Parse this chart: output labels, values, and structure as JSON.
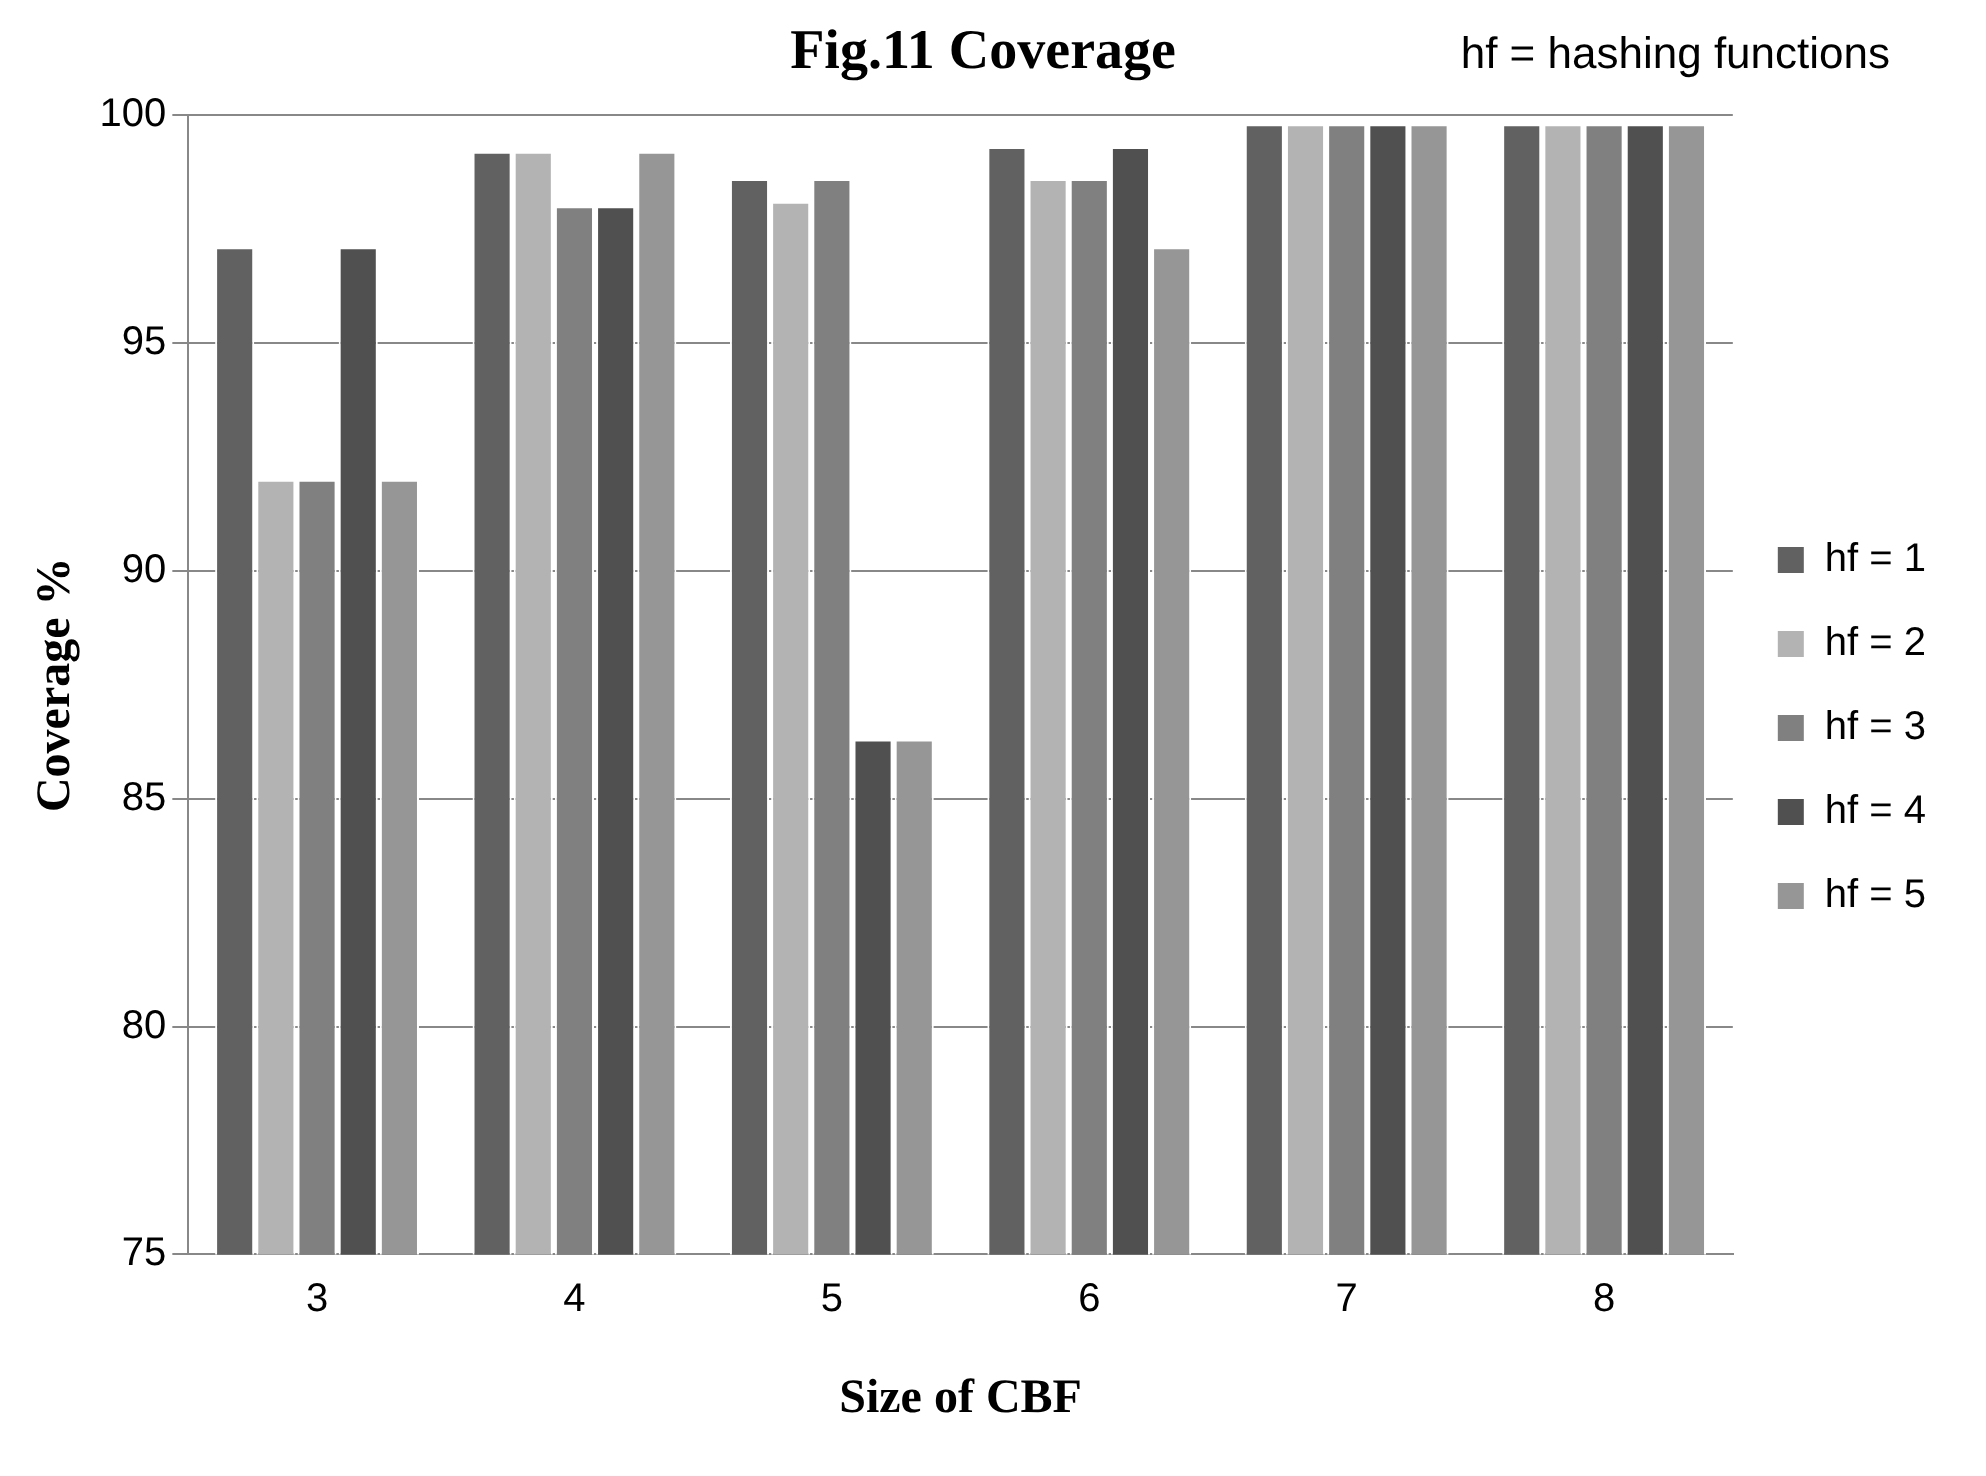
{
  "chart_data": {
    "type": "bar",
    "title": "Fig.11 Coverage",
    "xlabel": "Size of CBF",
    "ylabel": "Coverage %",
    "annotations": [
      "hf = hashing functions"
    ],
    "categories": [
      "3",
      "4",
      "5",
      "6",
      "7",
      "8"
    ],
    "series": [
      {
        "name": "hf = 1",
        "color": "#616161",
        "values": [
          97.1,
          99.2,
          98.6,
          99.3,
          99.8,
          99.8
        ]
      },
      {
        "name": "hf = 2",
        "color": "#b3b3b3",
        "values": [
          92.0,
          99.2,
          98.1,
          98.6,
          99.8,
          99.8
        ]
      },
      {
        "name": "hf = 3",
        "color": "#808080",
        "values": [
          92.0,
          98.0,
          98.6,
          98.6,
          99.8,
          99.8
        ]
      },
      {
        "name": "hf = 4",
        "color": "#505050",
        "values": [
          97.1,
          98.0,
          86.3,
          99.3,
          99.8,
          99.8
        ]
      },
      {
        "name": "hf = 5",
        "color": "#969696",
        "values": [
          92.0,
          99.2,
          86.3,
          97.1,
          99.8,
          99.8
        ]
      }
    ],
    "ylim": [
      75,
      100
    ],
    "yticks": [
      75,
      80,
      85,
      90,
      95,
      100
    ],
    "grid": "y",
    "legend": "right"
  }
}
